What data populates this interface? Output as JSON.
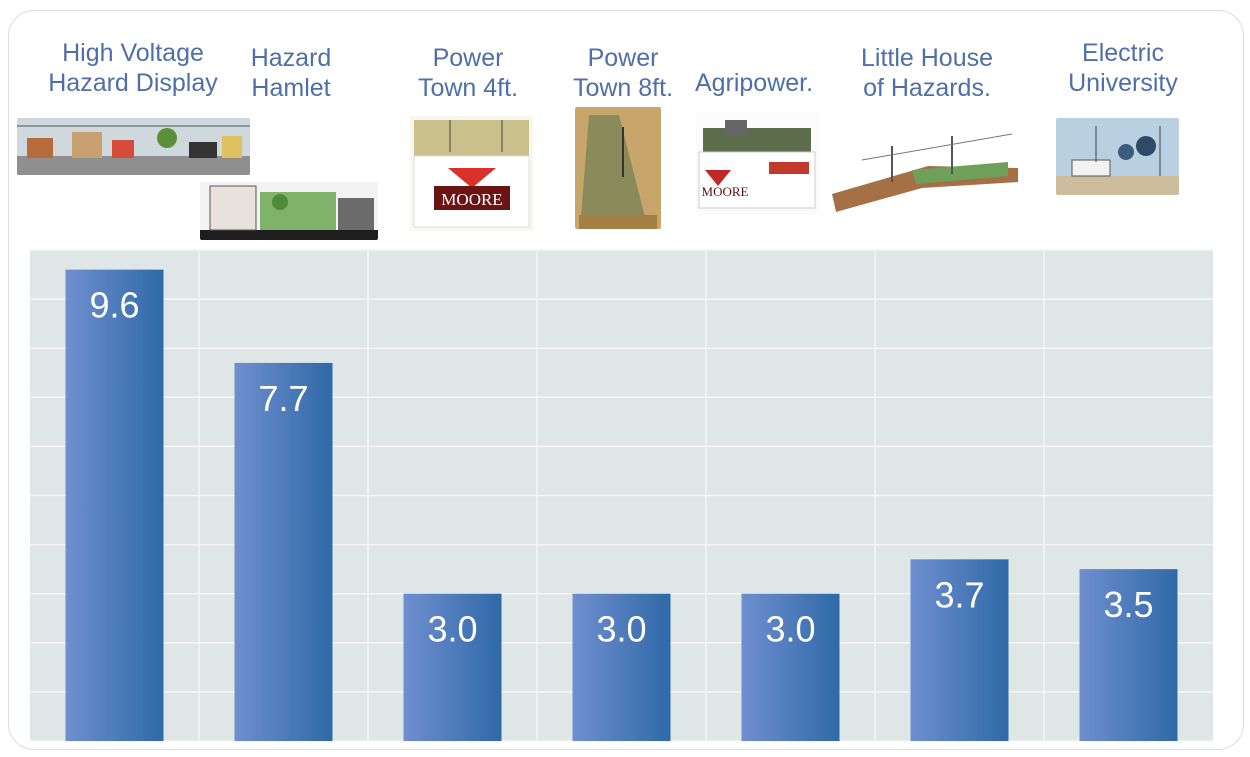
{
  "chart_data": {
    "type": "bar",
    "categories": [
      "High Voltage\nHazard Display",
      "Hazard\nHamlet",
      "Power\nTown 4ft.",
      "Power\nTown 8ft.",
      "Agripower.",
      "Little House\nof Hazards.",
      "Electric\nUniversity"
    ],
    "values": [
      9.6,
      7.7,
      3.0,
      3.0,
      3.0,
      3.7,
      3.5
    ],
    "data_labels": [
      "9.6",
      "7.7",
      "3.0",
      "3.0",
      "3.0",
      "3.7",
      "3.5"
    ],
    "title": "",
    "xlabel": "",
    "ylabel": "",
    "ylim": [
      0,
      10
    ],
    "grid": true,
    "legend": "none",
    "colors": {
      "bar_start": "#6f8fcf",
      "bar_end": "#2f69a8",
      "plot_bg": "#dfe6e6",
      "grid": "#f4f6f6",
      "label_text": "#4f6fa8",
      "value_text": "#ffffff"
    }
  },
  "thumbnails": [
    {
      "icon": "high-voltage-hazard-display-photo",
      "badge": ""
    },
    {
      "icon": "hazard-hamlet-photo",
      "badge": ""
    },
    {
      "icon": "power-town-4ft-photo",
      "badge": "MOORE"
    },
    {
      "icon": "power-town-8ft-photo",
      "badge": ""
    },
    {
      "icon": "agripower-photo",
      "badge": "MOORE"
    },
    {
      "icon": "little-house-of-hazards-photo",
      "badge": ""
    },
    {
      "icon": "electric-university-photo",
      "badge": ""
    }
  ]
}
